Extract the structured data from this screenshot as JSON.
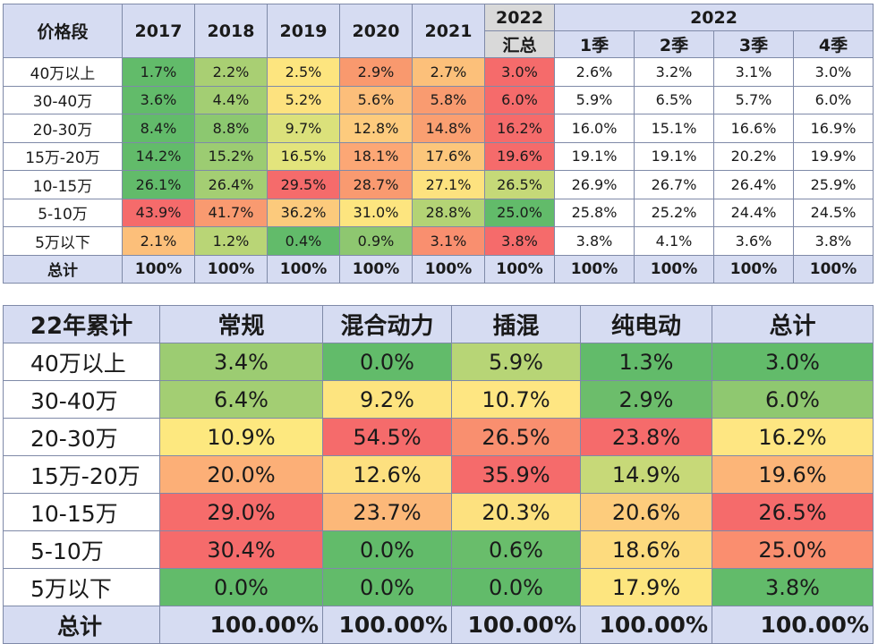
{
  "chart_data": [
    {
      "type": "table",
      "title": "",
      "header_row1": {
        "price_band": "价格段",
        "years": [
          "2017",
          "2018",
          "2019",
          "2020",
          "2021"
        ],
        "year_2022_summary_top": "2022",
        "year_2022_summary_bottom": "汇总",
        "quarters_group": "2022",
        "quarters": [
          "1季",
          "2季",
          "3季",
          "4季"
        ]
      },
      "rows": [
        {
          "label": "40万以上",
          "values": [
            "1.7%",
            "2.2%",
            "2.5%",
            "2.9%",
            "2.7%",
            "3.0%",
            "2.6%",
            "3.2%",
            "3.1%",
            "3.0%"
          ],
          "colors": [
            "#62bb6a",
            "#a9cf73",
            "#fde57f",
            "#f9996e",
            "#fcc07a",
            "#f56b6b",
            "#ffffff",
            "#ffffff",
            "#ffffff",
            "#ffffff"
          ]
        },
        {
          "label": "30-40万",
          "values": [
            "3.6%",
            "4.4%",
            "5.2%",
            "5.6%",
            "5.8%",
            "6.0%",
            "5.9%",
            "6.5%",
            "5.7%",
            "6.0%"
          ],
          "colors": [
            "#62bb6a",
            "#a3ce73",
            "#fde27f",
            "#fcbe7a",
            "#f99b70",
            "#f56b6b",
            "#ffffff",
            "#ffffff",
            "#ffffff",
            "#ffffff"
          ]
        },
        {
          "label": "20-30万",
          "values": [
            "8.4%",
            "8.8%",
            "9.7%",
            "12.8%",
            "14.8%",
            "16.2%",
            "16.0%",
            "15.1%",
            "16.6%",
            "16.9%"
          ],
          "colors": [
            "#62bb6a",
            "#8cc870",
            "#dbe17b",
            "#fdcb7d",
            "#fa9f71",
            "#f56b6b",
            "#ffffff",
            "#ffffff",
            "#ffffff",
            "#ffffff"
          ]
        },
        {
          "label": "15万-20万",
          "values": [
            "14.2%",
            "15.2%",
            "16.5%",
            "18.1%",
            "17.6%",
            "19.6%",
            "19.1%",
            "19.1%",
            "20.2%",
            "19.9%"
          ],
          "colors": [
            "#62bb6a",
            "#9ccc72",
            "#e3e47c",
            "#fca775",
            "#fcc67b",
            "#f56b6b",
            "#ffffff",
            "#ffffff",
            "#ffffff",
            "#ffffff"
          ]
        },
        {
          "label": "10-15万",
          "values": [
            "26.1%",
            "26.4%",
            "29.5%",
            "28.7%",
            "27.1%",
            "26.5%",
            "26.9%",
            "26.7%",
            "26.4%",
            "25.9%"
          ],
          "colors": [
            "#62bb6a",
            "#a4ce73",
            "#f56b6b",
            "#f99a70",
            "#fde27f",
            "#c5d978",
            "#ffffff",
            "#ffffff",
            "#ffffff",
            "#ffffff"
          ]
        },
        {
          "label": "5-10万",
          "values": [
            "43.9%",
            "41.7%",
            "36.2%",
            "31.0%",
            "28.8%",
            "25.0%",
            "25.8%",
            "25.2%",
            "24.4%",
            "24.5%"
          ],
          "colors": [
            "#f56b6b",
            "#f99a70",
            "#fcca7c",
            "#fde57f",
            "#b3d375",
            "#62bb6a",
            "#ffffff",
            "#ffffff",
            "#ffffff",
            "#ffffff"
          ]
        },
        {
          "label": "5万以下",
          "values": [
            "2.1%",
            "1.2%",
            "0.4%",
            "0.9%",
            "3.1%",
            "3.8%",
            "3.8%",
            "4.1%",
            "3.6%",
            "3.8%"
          ],
          "colors": [
            "#fcbf7a",
            "#b9d576",
            "#62bb6a",
            "#8ec770",
            "#f98f6f",
            "#f56b6b",
            "#ffffff",
            "#ffffff",
            "#ffffff",
            "#ffffff"
          ]
        }
      ],
      "total": {
        "label": "总计",
        "values": [
          "100%",
          "100%",
          "100%",
          "100%",
          "100%",
          "100%",
          "100%",
          "100%",
          "100%",
          "100%"
        ]
      }
    },
    {
      "type": "table",
      "title": "",
      "headers": [
        "22年累计",
        "常规",
        "混合动力",
        "插混",
        "纯电动",
        "总计"
      ],
      "rows": [
        {
          "label": "40万以上",
          "values": [
            "3.4%",
            "0.0%",
            "5.9%",
            "1.3%",
            "3.0%"
          ],
          "colors": [
            "#9ccc72",
            "#62bb6a",
            "#b7d576",
            "#62bb6a",
            "#62bb6a"
          ]
        },
        {
          "label": "30-40万",
          "values": [
            "6.4%",
            "9.2%",
            "10.7%",
            "2.9%",
            "6.0%"
          ],
          "colors": [
            "#a3ce73",
            "#fde47f",
            "#fee682",
            "#6cbd6b",
            "#8fc870"
          ]
        },
        {
          "label": "20-30万",
          "values": [
            "10.9%",
            "54.5%",
            "26.5%",
            "23.8%",
            "16.2%"
          ],
          "colors": [
            "#fde87f",
            "#f56b6b",
            "#f98f6f",
            "#f56b6b",
            "#fee682"
          ]
        },
        {
          "label": "15万-20万",
          "values": [
            "20.0%",
            "12.6%",
            "35.9%",
            "14.9%",
            "19.6%"
          ],
          "colors": [
            "#fcaf77",
            "#fde07f",
            "#f56b6b",
            "#c7d978",
            "#fcb578"
          ]
        },
        {
          "label": "10-15万",
          "values": [
            "29.0%",
            "23.7%",
            "20.3%",
            "20.6%",
            "26.5%"
          ],
          "colors": [
            "#f66c6b",
            "#fcb879",
            "#fde17f",
            "#fdcc7c",
            "#f56b6b"
          ]
        },
        {
          "label": "5-10万",
          "values": [
            "30.4%",
            "0.0%",
            "0.6%",
            "18.6%",
            "25.0%"
          ],
          "colors": [
            "#f56b6b",
            "#62bb6a",
            "#69bd6b",
            "#fddb7e",
            "#fa8e6f"
          ]
        },
        {
          "label": "5万以下",
          "values": [
            "0.0%",
            "0.0%",
            "0.0%",
            "17.9%",
            "3.8%"
          ],
          "colors": [
            "#62bb6a",
            "#62bb6a",
            "#62bb6a",
            "#fde57f",
            "#62bb6a"
          ]
        }
      ],
      "total": {
        "label": "总计",
        "values": [
          "100.00%",
          "100.00%",
          "100.00%",
          "100.00%",
          "100.00%"
        ]
      }
    }
  ]
}
